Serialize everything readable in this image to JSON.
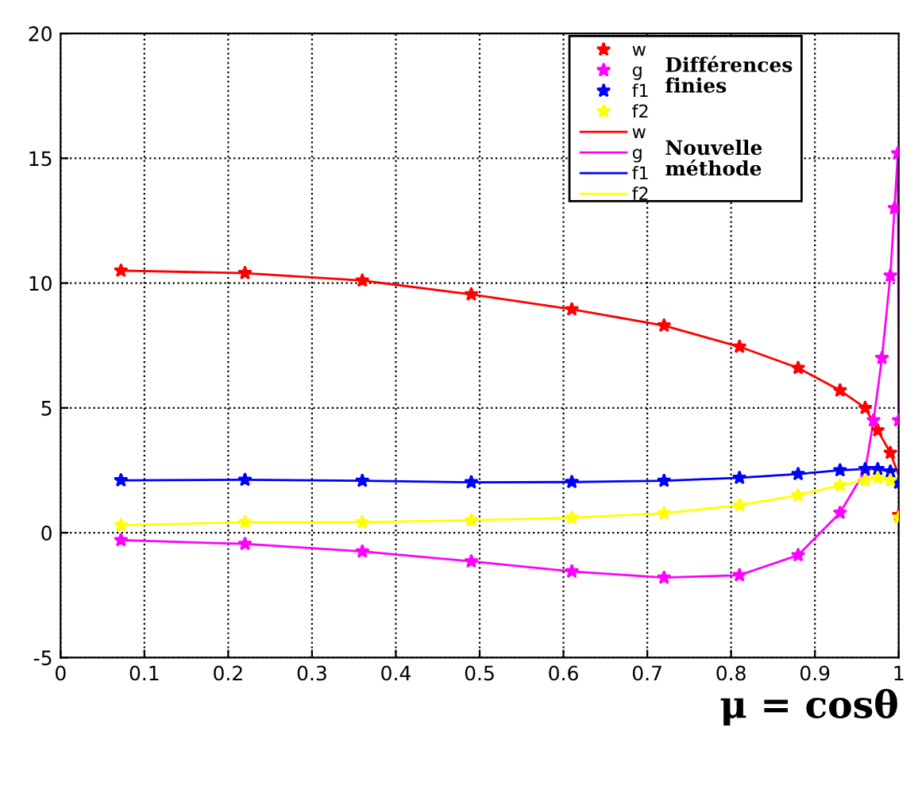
{
  "chart_data": {
    "type": "line",
    "xlabel": "μ = cosθ",
    "xlim": [
      0,
      1
    ],
    "xticks": [
      0,
      0.1,
      0.2,
      0.3,
      0.4,
      0.5,
      0.6,
      0.7,
      0.8,
      0.9,
      1
    ],
    "ylim": [
      -5,
      20
    ],
    "yticks": [
      -5,
      0,
      5,
      10,
      15,
      20
    ],
    "grid": true,
    "legend": "top right",
    "x": [
      0.072,
      0.22,
      0.36,
      0.49,
      0.61,
      0.72,
      0.81,
      0.88,
      0.93,
      0.96,
      0.975,
      0.99,
      1.0
    ],
    "series": [
      {
        "name": "w",
        "type": "scatter",
        "marker": "star",
        "color": "#ff0000",
        "values": [
          10.5,
          10.4,
          10.1,
          9.55,
          8.95,
          8.3,
          7.45,
          6.6,
          5.7,
          5.0,
          4.1,
          3.2,
          0.7
        ]
      },
      {
        "name": "g",
        "type": "scatter",
        "marker": "star",
        "color": "#ff00ff",
        "x": [
          0.072,
          0.22,
          0.36,
          0.49,
          0.61,
          0.72,
          0.81,
          0.88,
          0.93,
          0.96,
          0.97,
          0.98,
          0.99,
          0.995,
          0.999,
          1.0
        ],
        "values": [
          -0.3,
          -0.45,
          -0.75,
          -1.15,
          -1.55,
          -1.8,
          -1.7,
          -0.9,
          0.8,
          2.5,
          4.5,
          7.0,
          10.3,
          13.0,
          15.2,
          4.5
        ]
      },
      {
        "name": "f1",
        "type": "scatter",
        "marker": "star",
        "color": "#0000ff",
        "values": [
          2.1,
          2.12,
          2.08,
          2.02,
          2.03,
          2.08,
          2.2,
          2.35,
          2.5,
          2.55,
          2.55,
          2.45,
          2.0
        ]
      },
      {
        "name": "f2",
        "type": "scatter",
        "marker": "star",
        "color": "#ffff00",
        "values": [
          0.3,
          0.42,
          0.42,
          0.5,
          0.6,
          0.78,
          1.1,
          1.5,
          1.9,
          2.1,
          2.2,
          2.1,
          0.6
        ]
      },
      {
        "name": "w",
        "color": "#ff0000",
        "values": [
          10.5,
          10.4,
          10.1,
          9.55,
          8.95,
          8.3,
          7.45,
          6.6,
          5.7,
          5.0,
          4.1,
          3.2,
          2.3
        ]
      },
      {
        "name": "g",
        "color": "#ff00ff",
        "x": [
          0.072,
          0.22,
          0.36,
          0.49,
          0.61,
          0.72,
          0.81,
          0.88,
          0.93,
          0.96,
          0.97,
          0.98,
          0.99,
          0.995,
          0.999,
          1.0
        ],
        "values": [
          -0.3,
          -0.45,
          -0.75,
          -1.15,
          -1.55,
          -1.8,
          -1.7,
          -0.9,
          0.8,
          2.5,
          4.5,
          7.0,
          10.3,
          13.0,
          15.2,
          4.5
        ]
      },
      {
        "name": "f1",
        "color": "#0000ff",
        "values": [
          2.1,
          2.12,
          2.08,
          2.02,
          2.03,
          2.08,
          2.2,
          2.35,
          2.5,
          2.55,
          2.55,
          2.45,
          2.0
        ]
      },
      {
        "name": "f2",
        "color": "#ffff00",
        "values": [
          0.3,
          0.42,
          0.42,
          0.5,
          0.6,
          0.78,
          1.1,
          1.5,
          1.9,
          2.1,
          2.2,
          2.1,
          1.8
        ]
      }
    ],
    "annotations": [
      "Différences\nfinies",
      "Nouvelle\nméthode"
    ]
  }
}
